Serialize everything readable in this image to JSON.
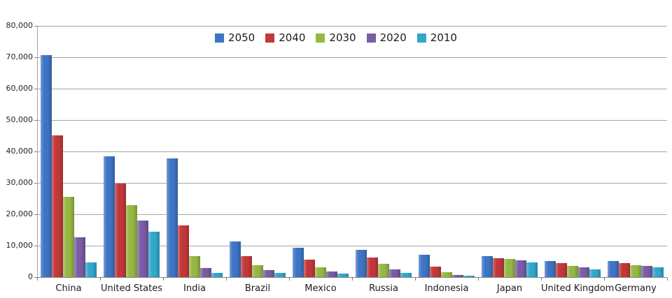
{
  "chart_data": {
    "type": "bar",
    "title": "",
    "xlabel": "",
    "ylabel": "",
    "ylim": [
      0,
      80000
    ],
    "grid": true,
    "legend_position": "top-center",
    "y_tick_labels": [
      "0",
      "10,000",
      "20,000",
      "30,000",
      "40,000",
      "50,000",
      "60,000",
      "70,000",
      "80,000"
    ],
    "categories": [
      "China",
      "United States",
      "India",
      "Brazil",
      "Mexico",
      "Russia",
      "Indonesia",
      "Japan",
      "United Kingdom",
      "Germany"
    ],
    "series": [
      {
        "name": "2050",
        "color": "#3e74c4",
        "values": [
          70710,
          38514,
          37668,
          11366,
          9340,
          8580,
          7010,
          6677,
          5133,
          5024
        ]
      },
      {
        "name": "2040",
        "color": "#c2383a",
        "values": [
          45022,
          29823,
          16510,
          6631,
          5471,
          6320,
          3286,
          6042,
          4344,
          4388
        ]
      },
      {
        "name": "2030",
        "color": "#94b843",
        "values": [
          25610,
          22817,
          6683,
          3720,
          3068,
          4265,
          1479,
          5814,
          3595,
          3761
        ]
      },
      {
        "name": "2020",
        "color": "#7a5ca5",
        "values": [
          12630,
          17978,
          2848,
          2194,
          1742,
          2554,
          752,
          5224,
          3101,
          3519
        ]
      },
      {
        "name": "2010",
        "color": "#32a7cd",
        "values": [
          4667,
          14535,
          1256,
          1346,
          1009,
          1371,
          419,
          4604,
          2546,
          3083
        ]
      }
    ]
  },
  "colors": {
    "background": "#ffffff",
    "gridline": "#a6a6a6",
    "axis_line": "#7f7f7f",
    "text": "#1a1a1a"
  }
}
